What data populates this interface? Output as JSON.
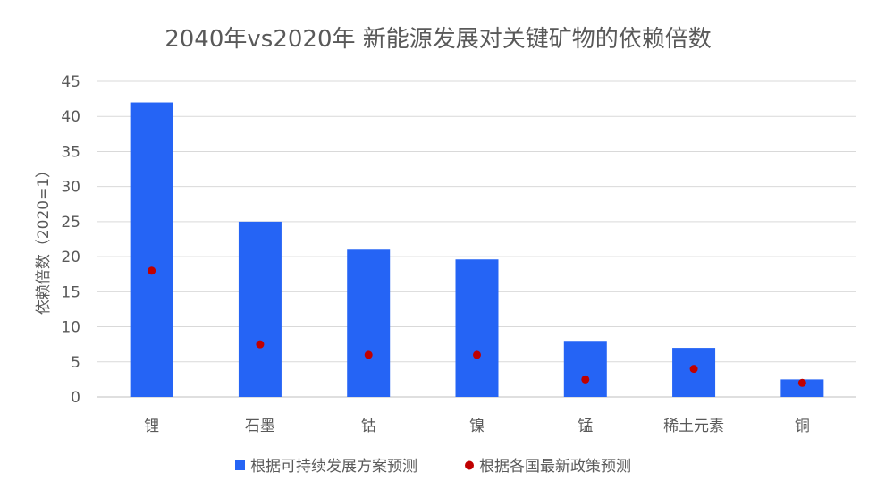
{
  "chart_data": {
    "type": "bar",
    "title": "2040年vs2020年 新能源发展对关键矿物的依赖倍数",
    "xlabel": "",
    "ylabel": "依赖倍数（2020=1）",
    "ylim": [
      0,
      45
    ],
    "yticks": [
      0,
      5,
      10,
      15,
      20,
      25,
      30,
      35,
      40,
      45
    ],
    "grid": true,
    "legend_position": "bottom",
    "categories": [
      "锂",
      "石墨",
      "钴",
      "镍",
      "锰",
      "稀土元素",
      "铜"
    ],
    "series": [
      {
        "name": "根据可持续发展方案预测",
        "type": "bar",
        "color": "#2564f5",
        "values": [
          42,
          25,
          21,
          19.6,
          8,
          7,
          2.5
        ]
      },
      {
        "name": "根据各国最新政策预测",
        "type": "scatter",
        "color": "#c00000",
        "values": [
          18,
          7.5,
          6,
          6,
          2.5,
          4,
          2
        ]
      }
    ]
  }
}
